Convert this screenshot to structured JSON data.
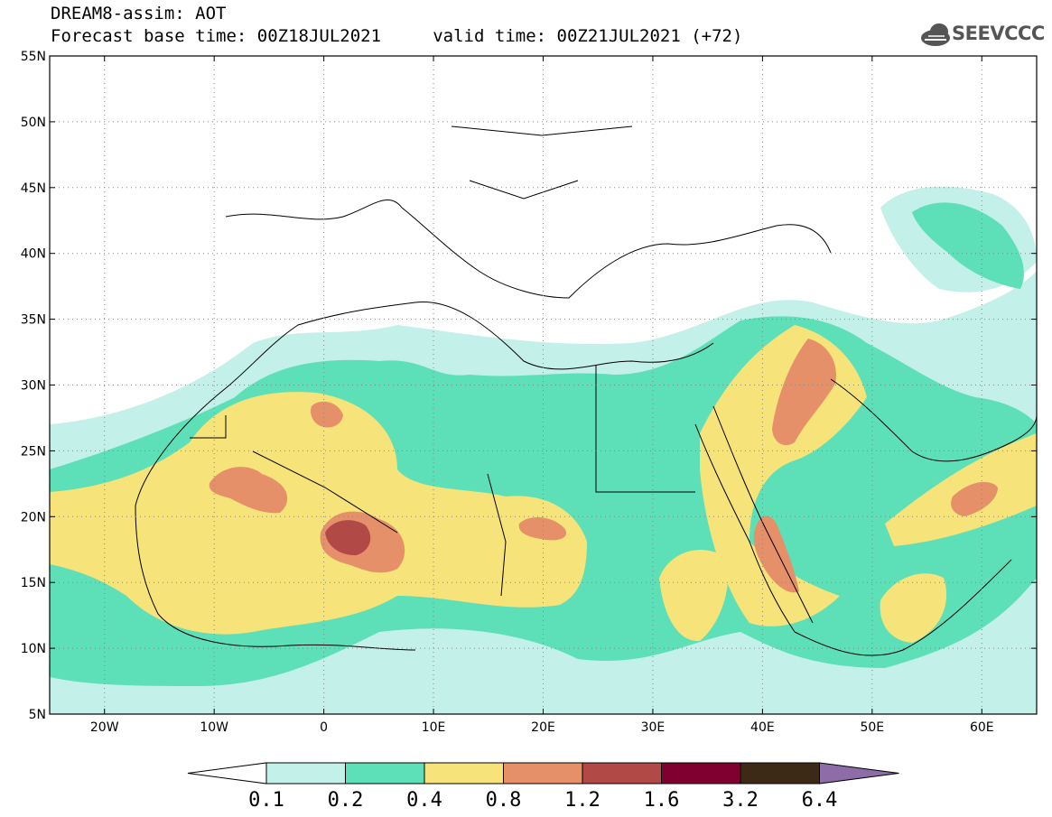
{
  "title": {
    "line1": "DREAM8-assim: AOT",
    "line2": "Forecast base time: 00Z18JUL2021     valid time: 00Z21JUL2021 (+72)"
  },
  "logo": {
    "text": "SEEVCCC",
    "icon": "cloud-icon"
  },
  "map": {
    "lon_range": [
      -25,
      65
    ],
    "lat_range": [
      5,
      55
    ],
    "lon_ticks": [
      "20W",
      "10W",
      "0",
      "10E",
      "20E",
      "30E",
      "40E",
      "50E",
      "60E"
    ],
    "lat_ticks": [
      "55N",
      "50N",
      "45N",
      "40N",
      "35N",
      "30N",
      "25N",
      "20N",
      "15N",
      "10N",
      "5N"
    ],
    "grid": "dotted"
  },
  "colorbar": {
    "levels": [
      "0.1",
      "0.2",
      "0.4",
      "0.8",
      "1.2",
      "1.6",
      "3.2",
      "6.4"
    ],
    "colors": [
      "#c3f0e8",
      "#5ddfb8",
      "#f6e37a",
      "#e6906a",
      "#b14a46",
      "#800030",
      "#3c2a16",
      "#8e6ca8"
    ]
  }
}
